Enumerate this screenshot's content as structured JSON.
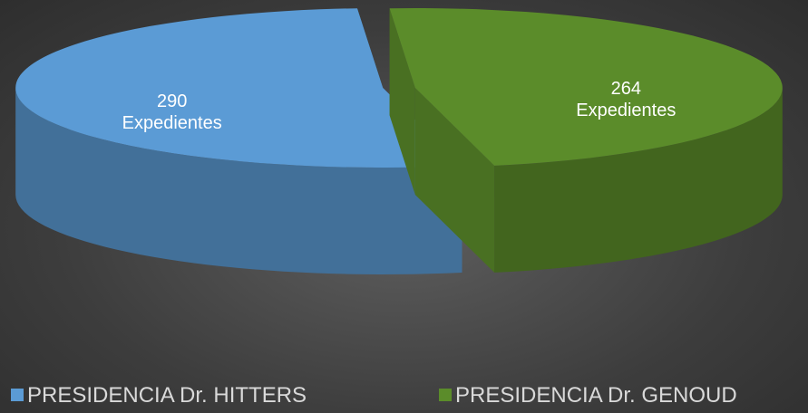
{
  "chart_data": {
    "type": "pie3d",
    "categories": [
      "PRESIDENCIA Dr. HITTERS",
      "PRESIDENCIA Dr. GENOUD"
    ],
    "values": [
      290,
      264
    ],
    "value_labels": [
      "290\nExpedientes",
      "264\nExpedientes"
    ],
    "colors": [
      "#5b9bd5",
      "#5b8c2a"
    ]
  }
}
